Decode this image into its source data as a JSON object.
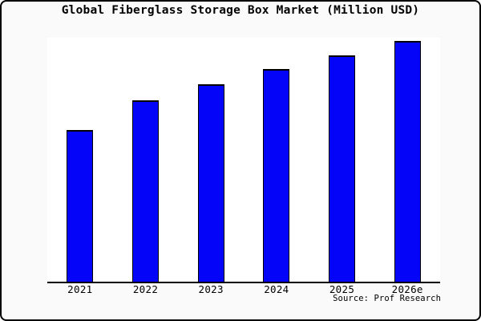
{
  "title": "Global Fiberglass Storage Box Market (Million USD)",
  "source": "Source: Prof Research",
  "chart_data": {
    "type": "bar",
    "title": "Global Fiberglass Storage Box Market (Million USD)",
    "categories": [
      "2021",
      "2022",
      "2023",
      "2024",
      "2025",
      "2026e"
    ],
    "values": [
      63,
      75.3,
      82,
      88.3,
      94,
      100
    ],
    "values_note": "No y-axis ticks, gridlines, or data labels are visible; values are bar heights measured relative to the tallest bar (2026e = 100).",
    "xlabel": "",
    "ylabel": "",
    "ylim": [
      0,
      100
    ],
    "grid": false,
    "legend": "none",
    "axes_visible": "bottom x-axis only",
    "annotations": [
      "Source: Prof Research"
    ],
    "bar_color": "#0404f8",
    "bar_border_color": "#000000"
  },
  "colors": {
    "canvas_background": "#fafafa",
    "plot_background": "#ffffff",
    "bar_fill": "#0404f8",
    "bar_border": "#000000",
    "axis_line": "#000000",
    "text": "#000000",
    "frame_border": "#000000"
  }
}
